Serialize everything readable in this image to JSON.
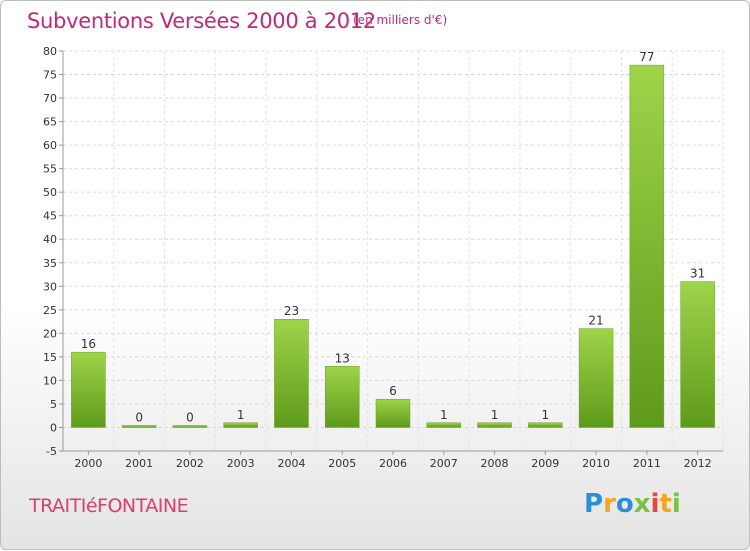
{
  "chart_data": {
    "type": "bar",
    "title": "Subventions Versées 2000 à 2012",
    "subtitle": "(en milliers d'€)",
    "categories": [
      "2000",
      "2001",
      "2002",
      "2003",
      "2004",
      "2005",
      "2006",
      "2007",
      "2008",
      "2009",
      "2010",
      "2011",
      "2012"
    ],
    "values": [
      16,
      0,
      0,
      1,
      23,
      13,
      6,
      1,
      1,
      1,
      21,
      77,
      31
    ],
    "ylim": [
      -5,
      80
    ],
    "yticks": [
      -5,
      0,
      5,
      10,
      15,
      20,
      25,
      30,
      35,
      40,
      45,
      50,
      55,
      60,
      65,
      70,
      75,
      80
    ],
    "grid": true,
    "bar_color": "#7ab72c"
  },
  "footer": {
    "commune": "TRAITIéFONTAINE",
    "logo_letters": [
      "P",
      "r",
      "o",
      "x",
      "i",
      "t",
      "i"
    ]
  },
  "colors": {
    "title": "#c0287a",
    "commune": "#d9406b"
  }
}
